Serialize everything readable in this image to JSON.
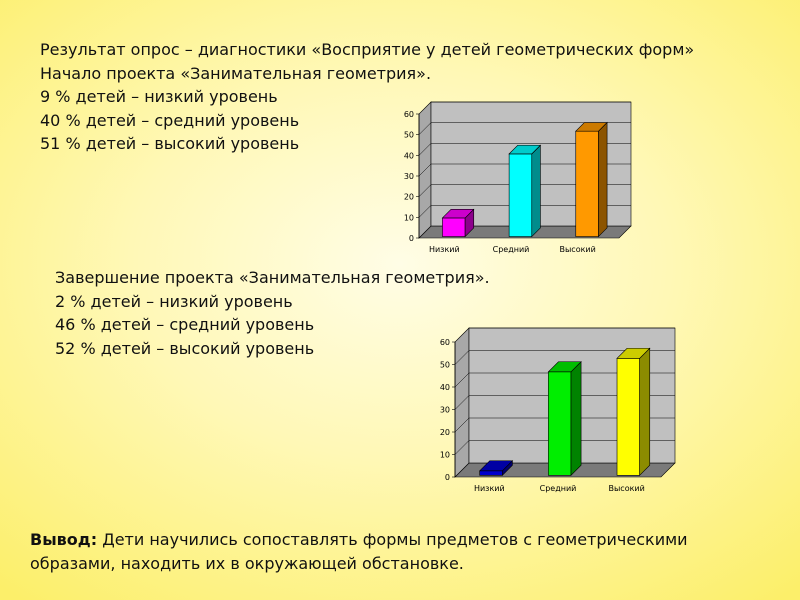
{
  "block1": {
    "lines": [
      "Результат опрос – диагностики «Восприятие у детей геометрических форм»",
      "Начало проекта «Занимательная геометрия».",
      "9 % детей – низкий уровень",
      "40 % детей – средний уровень",
      "51 % детей – высокий уровень"
    ]
  },
  "block2": {
    "lines": [
      "Завершение проекта «Занимательная геометрия».",
      "2 % детей – низкий уровень",
      "46 % детей – средний уровень",
      "52 % детей – высокий уровень"
    ]
  },
  "conclusion": {
    "label": "Вывод:",
    "text": " Дети научились сопоставлять формы предметов с геометрическими образами, находить их в окружающей обстановке."
  },
  "chart_data": [
    {
      "type": "bar",
      "categories": [
        "Низкий",
        "Средний",
        "Высокий"
      ],
      "values": [
        9,
        40,
        51
      ],
      "colors": [
        "#ff00ff",
        "#00ffff",
        "#ff9900"
      ],
      "y_ticks": [
        "0",
        "10",
        "20",
        "30",
        "40",
        "50",
        "60"
      ],
      "ylim": [
        0,
        60
      ],
      "grid": true,
      "style": "3d"
    },
    {
      "type": "bar",
      "categories": [
        "Низкий",
        "Средний",
        "Высокий"
      ],
      "values": [
        2,
        46,
        52
      ],
      "colors": [
        "#0000cc",
        "#00ee00",
        "#ffff00"
      ],
      "y_ticks": [
        "0",
        "10",
        "20",
        "30",
        "40",
        "50",
        "60"
      ],
      "ylim": [
        0,
        60
      ],
      "grid": true,
      "style": "3d"
    }
  ]
}
